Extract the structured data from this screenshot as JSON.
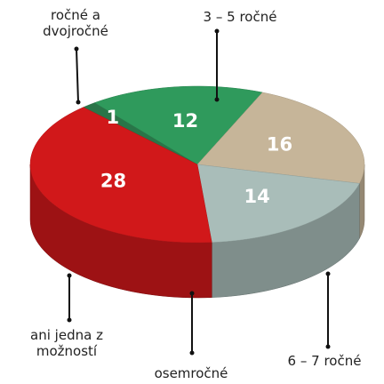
{
  "chart_data": {
    "type": "pie3d",
    "categories": [
      "ročné a dvojročné",
      "3 – 5 ročné",
      "6 – 7 ročné",
      "osemročné",
      "ani jedna z možností"
    ],
    "values": [
      1,
      12,
      16,
      14,
      28
    ],
    "colors": [
      "#2a7548",
      "#2f9a5c",
      "#c6b599",
      "#a9bdb9",
      "#d1181a"
    ]
  }
}
